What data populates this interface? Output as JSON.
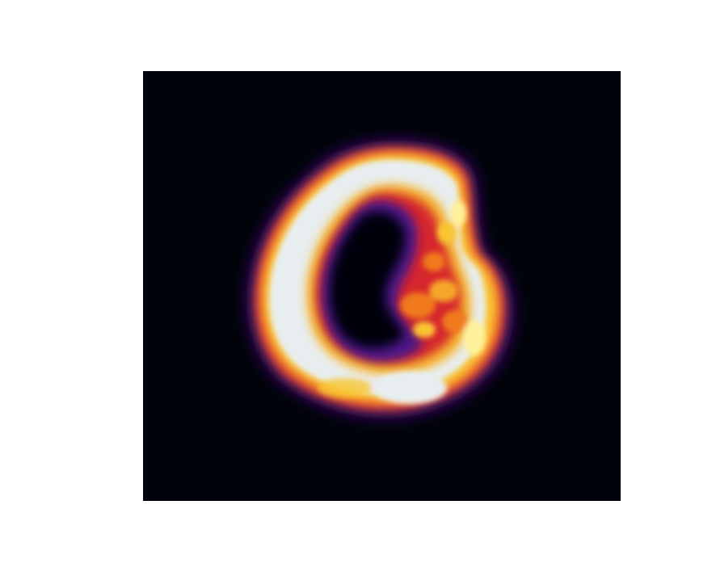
{
  "figure": {
    "background_color": "#ffffff",
    "panel_background_color": "#01030a",
    "colormap": [
      "#01030a",
      "#2a0a5e",
      "#7a1fa2",
      "#d6262d",
      "#f07a1a",
      "#f9c531",
      "#fff19a",
      "#e8eef0"
    ]
  }
}
